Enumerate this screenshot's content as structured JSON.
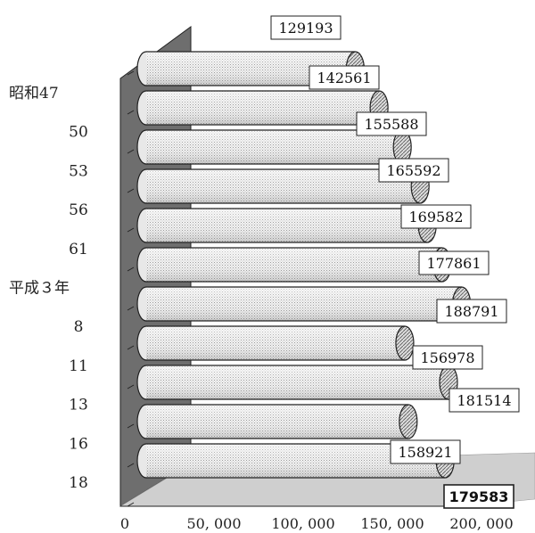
{
  "chart_data": {
    "type": "bar",
    "orientation": "horizontal",
    "style": "3d-cylinder",
    "title": "",
    "xlabel": "",
    "ylabel": "",
    "categories": [
      "昭和47",
      "50",
      "53",
      "56",
      "61",
      "平成３年",
      "8",
      "11",
      "13",
      "16",
      "18"
    ],
    "values": [
      129193,
      142561,
      155588,
      165592,
      169582,
      177861,
      188791,
      156978,
      181514,
      158921,
      179583
    ],
    "x_ticks": [
      "0",
      "50, 000",
      "100, 000",
      "150, 000",
      "200, 000"
    ],
    "xlim": [
      0,
      200000
    ],
    "grid": false,
    "legend": "none",
    "colors": {
      "bar_fill": "#f2f2f2",
      "bar_edge": "#222222",
      "wall": "#6e6e6e",
      "floor": "#cfcfcf"
    }
  }
}
